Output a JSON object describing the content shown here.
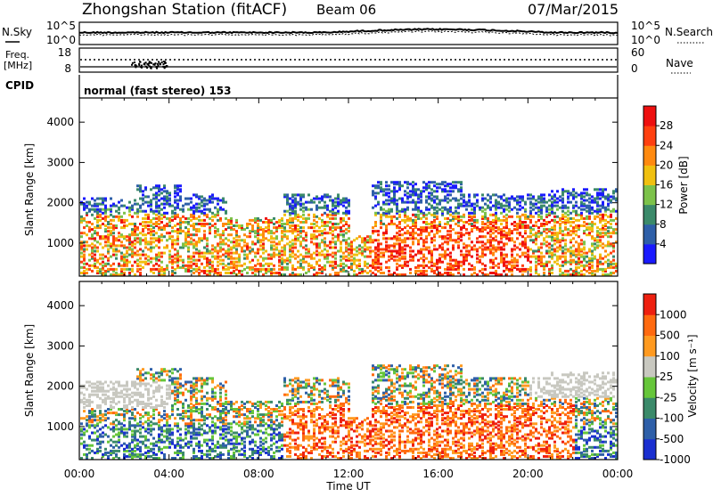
{
  "header": {
    "station_title": "Zhongshan Station (fitACF)",
    "beam_label": "Beam 06",
    "date": "07/Mar/2015"
  },
  "noise_panel": {
    "left_label": "N.Sky",
    "left_ticks": [
      "10^5",
      "10^0"
    ],
    "right_ticks": [
      "10^5",
      "10^0"
    ],
    "right_label": "N.Search"
  },
  "freq_panel": {
    "left_label_1": "Freq.",
    "left_label_2": "[MHz]",
    "left_ticks": [
      "18",
      "8"
    ],
    "right_ticks": [
      "60",
      "0"
    ],
    "right_label": "Nave"
  },
  "cpid_panel": {
    "label": "CPID",
    "program": "normal (fast stereo) 153"
  },
  "chart_data": [
    {
      "type": "heatmap",
      "title": "",
      "ylabel": "Slant Range [km]",
      "xlabel": "",
      "y_ticks": [
        "1000",
        "2000",
        "3000",
        "4000"
      ],
      "ylim": [
        180,
        4600
      ],
      "xlim": [
        0,
        24
      ],
      "colorbar": {
        "label": "Power [dB]",
        "ticks": [
          "4",
          "8",
          "12",
          "16",
          "20",
          "24",
          "28"
        ],
        "colors": [
          "#1a1aff",
          "#2e5fa8",
          "#3b8a6a",
          "#7cc24a",
          "#f0c010",
          "#ff8a10",
          "#ff4010",
          "#ee1010"
        ]
      }
    },
    {
      "type": "heatmap",
      "title": "",
      "ylabel": "Slant Range [km]",
      "xlabel": "Time UT",
      "y_ticks": [
        "1000",
        "2000",
        "3000",
        "4000"
      ],
      "x_ticks": [
        "00:00",
        "04:00",
        "08:00",
        "12:00",
        "16:00",
        "20:00",
        "00:00"
      ],
      "ylim": [
        180,
        4600
      ],
      "xlim": [
        0,
        24
      ],
      "colorbar": {
        "label": "Velocity [m s⁻¹]",
        "ticks": [
          "1000",
          "500",
          "100",
          "25",
          "-25",
          "-100",
          "-500",
          "-1000"
        ],
        "colors": [
          "#1a2fd0",
          "#2e5fa8",
          "#3b8a6a",
          "#66c63a",
          "#c8c8c0",
          "#ff9a20",
          "#ff6a10",
          "#ee2010"
        ]
      }
    }
  ]
}
